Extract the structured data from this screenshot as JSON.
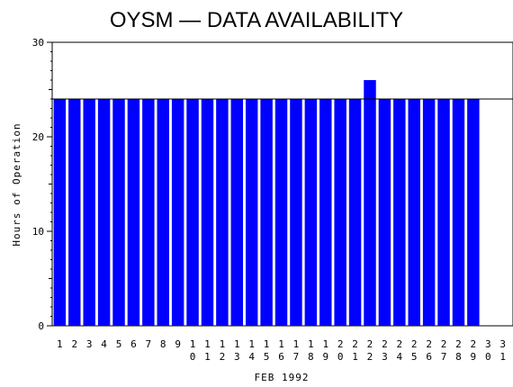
{
  "chart_data": {
    "type": "bar",
    "title": "OYSM — DATA AVAILABILITY",
    "xlabel": "FEB 1992",
    "ylabel": "Hours of Operation",
    "categories": [
      "1",
      "2",
      "3",
      "4",
      "5",
      "6",
      "7",
      "8",
      "9",
      "10",
      "11",
      "12",
      "13",
      "14",
      "15",
      "16",
      "17",
      "18",
      "19",
      "20",
      "21",
      "22",
      "23",
      "24",
      "25",
      "26",
      "27",
      "28",
      "29",
      "30",
      "31"
    ],
    "values": [
      24,
      24,
      24,
      24,
      24,
      24,
      24,
      24,
      24,
      24,
      24,
      24,
      24,
      24,
      24,
      24,
      24,
      24,
      24,
      24,
      24,
      26,
      24,
      24,
      24,
      24,
      24,
      24,
      24,
      null,
      null
    ],
    "ylim": [
      0,
      30
    ],
    "yticks": [
      0,
      10,
      20,
      30
    ],
    "reference_line": 24,
    "bar_color": "#0000ff",
    "grid": false,
    "legend": "none"
  }
}
